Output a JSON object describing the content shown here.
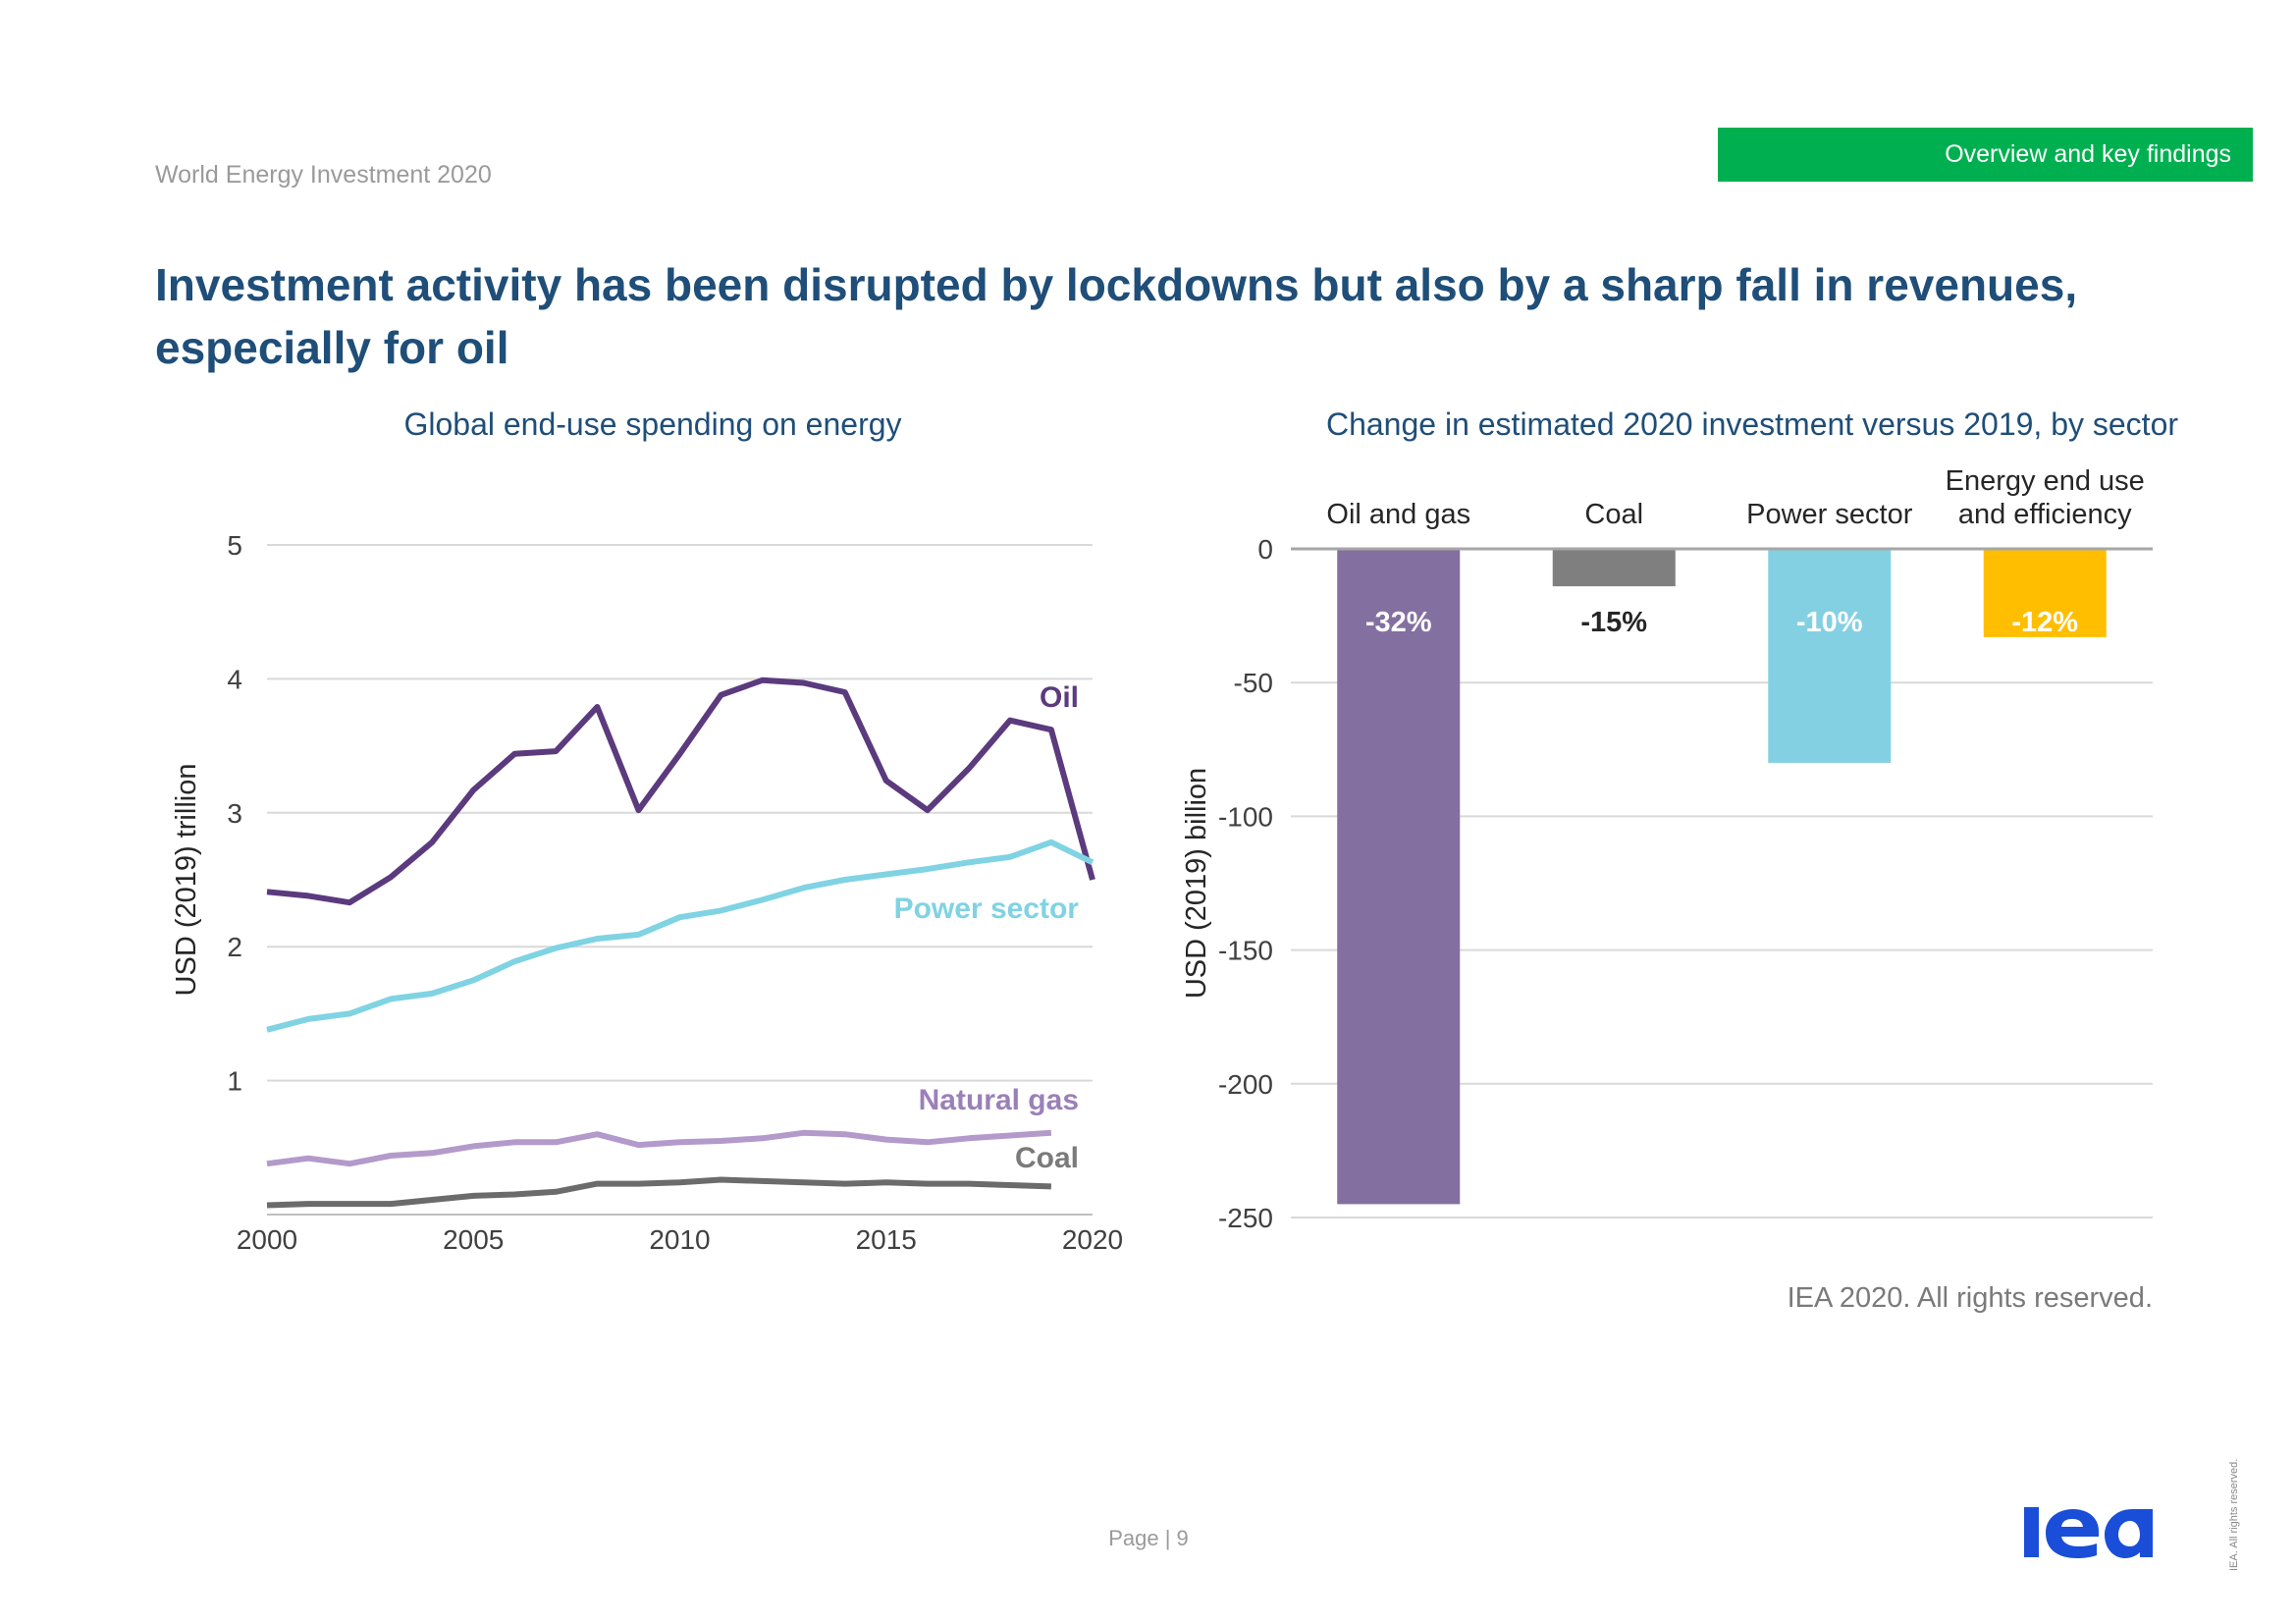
{
  "header": {
    "doc_title": "World Energy Investment 2020",
    "section_tag": "Overview and key findings"
  },
  "headline": "Investment activity has been disrupted by lockdowns but also by a sharp fall in revenues, especially for oil",
  "colors": {
    "brand_blue": "#1f4e79",
    "section_green": "#00b050",
    "logo_blue": "#1a4ed8",
    "oil": "#5b3a7e",
    "power": "#7fd3e3",
    "gas": "#b49acb",
    "coal": "#6b6b6b",
    "bar_oil_gas": "#836fa0",
    "bar_coal": "#7f7f7f",
    "bar_power": "#84d0e3",
    "bar_end_use": "#ffbf00"
  },
  "chart_data": [
    {
      "type": "line",
      "title": "Global end-use spending on energy",
      "ylabel": "USD (2019) trillion",
      "xlim": [
        2000,
        2020
      ],
      "ylim": [
        0,
        5
      ],
      "x_ticks": [
        "2000",
        "2005",
        "2010",
        "2015",
        "2020"
      ],
      "y_ticks": [
        "1",
        "2",
        "3",
        "4",
        "5"
      ],
      "grid": true,
      "series": [
        {
          "name": "Oil",
          "color": "#5b3a7e",
          "x": [
            2000,
            2001,
            2002,
            2003,
            2004,
            2005,
            2006,
            2007,
            2008,
            2009,
            2010,
            2011,
            2012,
            2013,
            2014,
            2015,
            2016,
            2017,
            2018,
            2019,
            2020
          ],
          "values": [
            2.41,
            2.38,
            2.33,
            2.52,
            2.78,
            3.17,
            3.44,
            3.46,
            3.79,
            3.02,
            3.44,
            3.88,
            3.99,
            3.97,
            3.9,
            3.24,
            3.02,
            3.33,
            3.69,
            3.62,
            2.5
          ]
        },
        {
          "name": "Power sector",
          "color": "#7fd3e3",
          "x": [
            2000,
            2001,
            2002,
            2003,
            2004,
            2005,
            2006,
            2007,
            2008,
            2009,
            2010,
            2011,
            2012,
            2013,
            2014,
            2015,
            2016,
            2017,
            2018,
            2019,
            2020
          ],
          "values": [
            1.38,
            1.46,
            1.5,
            1.61,
            1.65,
            1.75,
            1.89,
            1.99,
            2.06,
            2.09,
            2.22,
            2.27,
            2.35,
            2.44,
            2.5,
            2.54,
            2.58,
            2.63,
            2.67,
            2.78,
            2.63
          ]
        },
        {
          "name": "Natural gas",
          "color": "#b49acb",
          "x": [
            2000,
            2001,
            2002,
            2003,
            2004,
            2005,
            2006,
            2007,
            2008,
            2009,
            2010,
            2011,
            2012,
            2013,
            2014,
            2015,
            2016,
            2017,
            2018,
            2019
          ],
          "values": [
            0.38,
            0.42,
            0.38,
            0.44,
            0.46,
            0.51,
            0.54,
            0.54,
            0.6,
            0.52,
            0.54,
            0.55,
            0.57,
            0.61,
            0.6,
            0.56,
            0.54,
            0.57,
            0.59,
            0.61
          ]
        },
        {
          "name": "Coal",
          "color": "#6b6b6b",
          "x": [
            2000,
            2001,
            2002,
            2003,
            2004,
            2005,
            2006,
            2007,
            2008,
            2009,
            2010,
            2011,
            2012,
            2013,
            2014,
            2015,
            2016,
            2017,
            2018,
            2019
          ],
          "values": [
            0.07,
            0.08,
            0.08,
            0.08,
            0.11,
            0.14,
            0.15,
            0.17,
            0.23,
            0.23,
            0.24,
            0.26,
            0.25,
            0.24,
            0.23,
            0.24,
            0.23,
            0.23,
            0.22,
            0.21
          ]
        }
      ]
    },
    {
      "type": "bar",
      "title": "Change in estimated 2020 investment versus 2019, by sector",
      "ylabel": "USD (2019) billion",
      "ylim": [
        -250,
        0
      ],
      "y_ticks": [
        "0",
        "-50",
        "-100",
        "-150",
        "-200",
        "-250"
      ],
      "grid": true,
      "categories": [
        "Oil and gas",
        "Coal",
        "Power sector",
        "Energy end use and efficiency"
      ],
      "category_lines": [
        [
          "Oil and gas"
        ],
        [
          "Coal"
        ],
        [
          "Power sector"
        ],
        [
          "Energy end use",
          "and efficiency"
        ]
      ],
      "values": [
        -245,
        -14,
        -80,
        -33
      ],
      "data_labels": [
        "-32%",
        "-15%",
        "-10%",
        "-12%"
      ],
      "colors": [
        "#836fa0",
        "#7f7f7f",
        "#84d0e3",
        "#ffbf00"
      ]
    }
  ],
  "footer": {
    "copyright": "IEA 2020. All rights reserved.",
    "page": "Page | 9",
    "side_note": "IEA. All rights reserved.",
    "logo_text": "iea"
  }
}
